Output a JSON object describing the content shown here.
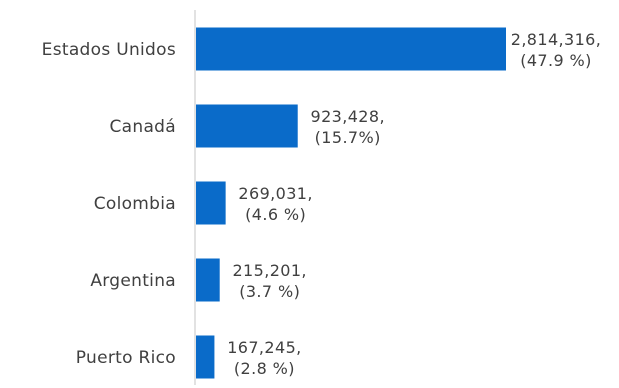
{
  "chart_data": {
    "type": "bar",
    "orientation": "horizontal",
    "categories": [
      "Estados Unidos",
      "Canadá",
      "Colombia",
      "Argentina",
      "Puerto  Rico"
    ],
    "values": [
      2814316,
      923428,
      269031,
      215201,
      167245
    ],
    "value_labels": [
      "2,814,316,",
      "923,428,",
      "269,031,",
      "215,201,",
      "167,245,"
    ],
    "percent_labels": [
      "(47.9 %)",
      "(15.7%)",
      "(4.6 %)",
      "(3.7 %)",
      "(2.8 %)"
    ],
    "title": "",
    "xlabel": "",
    "ylabel": "",
    "xlim": [
      0,
      2814316
    ],
    "grid": false,
    "legend": "none",
    "bar_color": "#0A6BC9",
    "axis_color": "#D9D9D9",
    "text_color": "#404040"
  }
}
